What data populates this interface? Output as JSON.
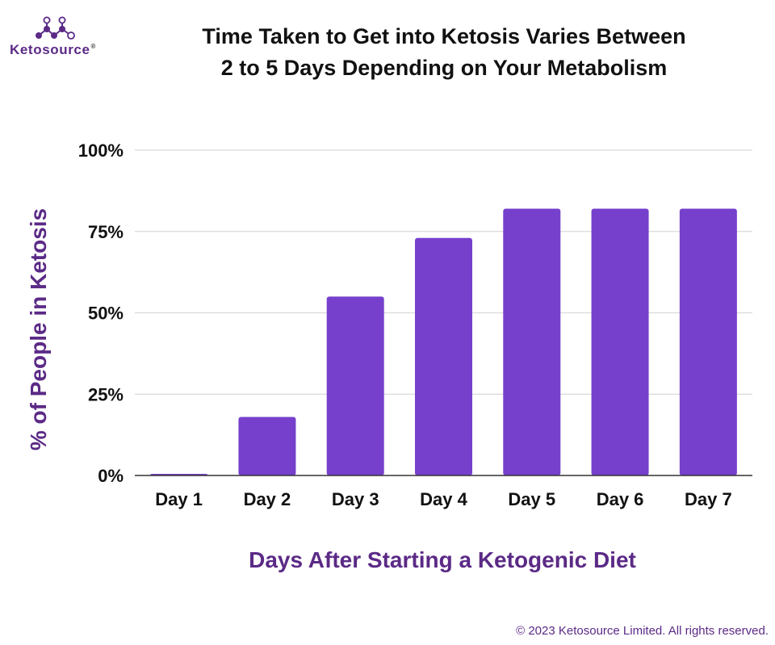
{
  "brand": {
    "name_prefix": "Keto",
    "name_suffix": "source",
    "registered_mark": "®",
    "primary_color": "#5b2a86",
    "logo_icon": "molecule-icon"
  },
  "title_lines": [
    "Time Taken to Get into Ketosis Varies Between",
    "2 to 5 Days Depending on Your Metabolism"
  ],
  "copyright": "© 2023 Ketosource Limited. All rights reserved.",
  "chart_data": {
    "type": "bar",
    "categories": [
      "Day 1",
      "Day 2",
      "Day 3",
      "Day 4",
      "Day 5",
      "Day 6",
      "Day 7"
    ],
    "values": [
      0.5,
      18,
      55,
      73,
      82,
      82,
      82
    ],
    "ylim": [
      0,
      100
    ],
    "yticks": [
      "0%",
      "25%",
      "50%",
      "75%",
      "100%"
    ],
    "ytick_values": [
      0,
      25,
      50,
      75,
      100
    ],
    "xlabel": "Days After Starting a Ketogenic Diet",
    "ylabel": "% of People in Ketosis",
    "grid": true,
    "legend": "none",
    "bar_color": "#7640cc",
    "label_color": "#5b2a86"
  }
}
